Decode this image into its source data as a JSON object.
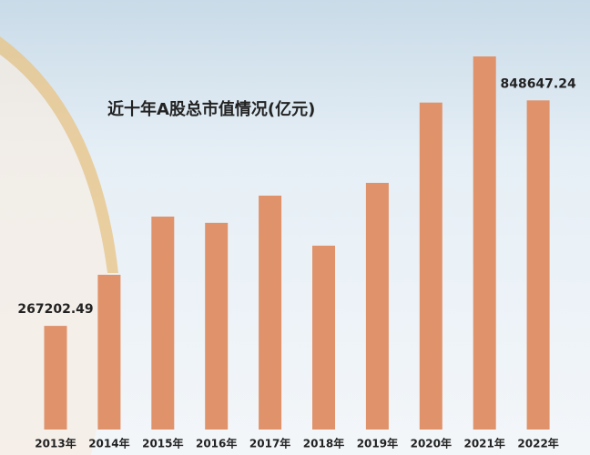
{
  "chart_data": {
    "type": "bar",
    "title": "近十年A股总市值情况(亿元)",
    "categories": [
      "2013年",
      "2014年",
      "2015年",
      "2016年",
      "2017年",
      "2018年",
      "2019年",
      "2020年",
      "2021年",
      "2022年"
    ],
    "values": [
      267202.49,
      399000,
      549000,
      533000,
      603000,
      474000,
      636000,
      843000,
      962000,
      848647.24
    ],
    "value_labels": [
      "267202.49",
      null,
      null,
      null,
      null,
      null,
      null,
      null,
      null,
      "848647.24"
    ],
    "color": "#e0926a"
  }
}
